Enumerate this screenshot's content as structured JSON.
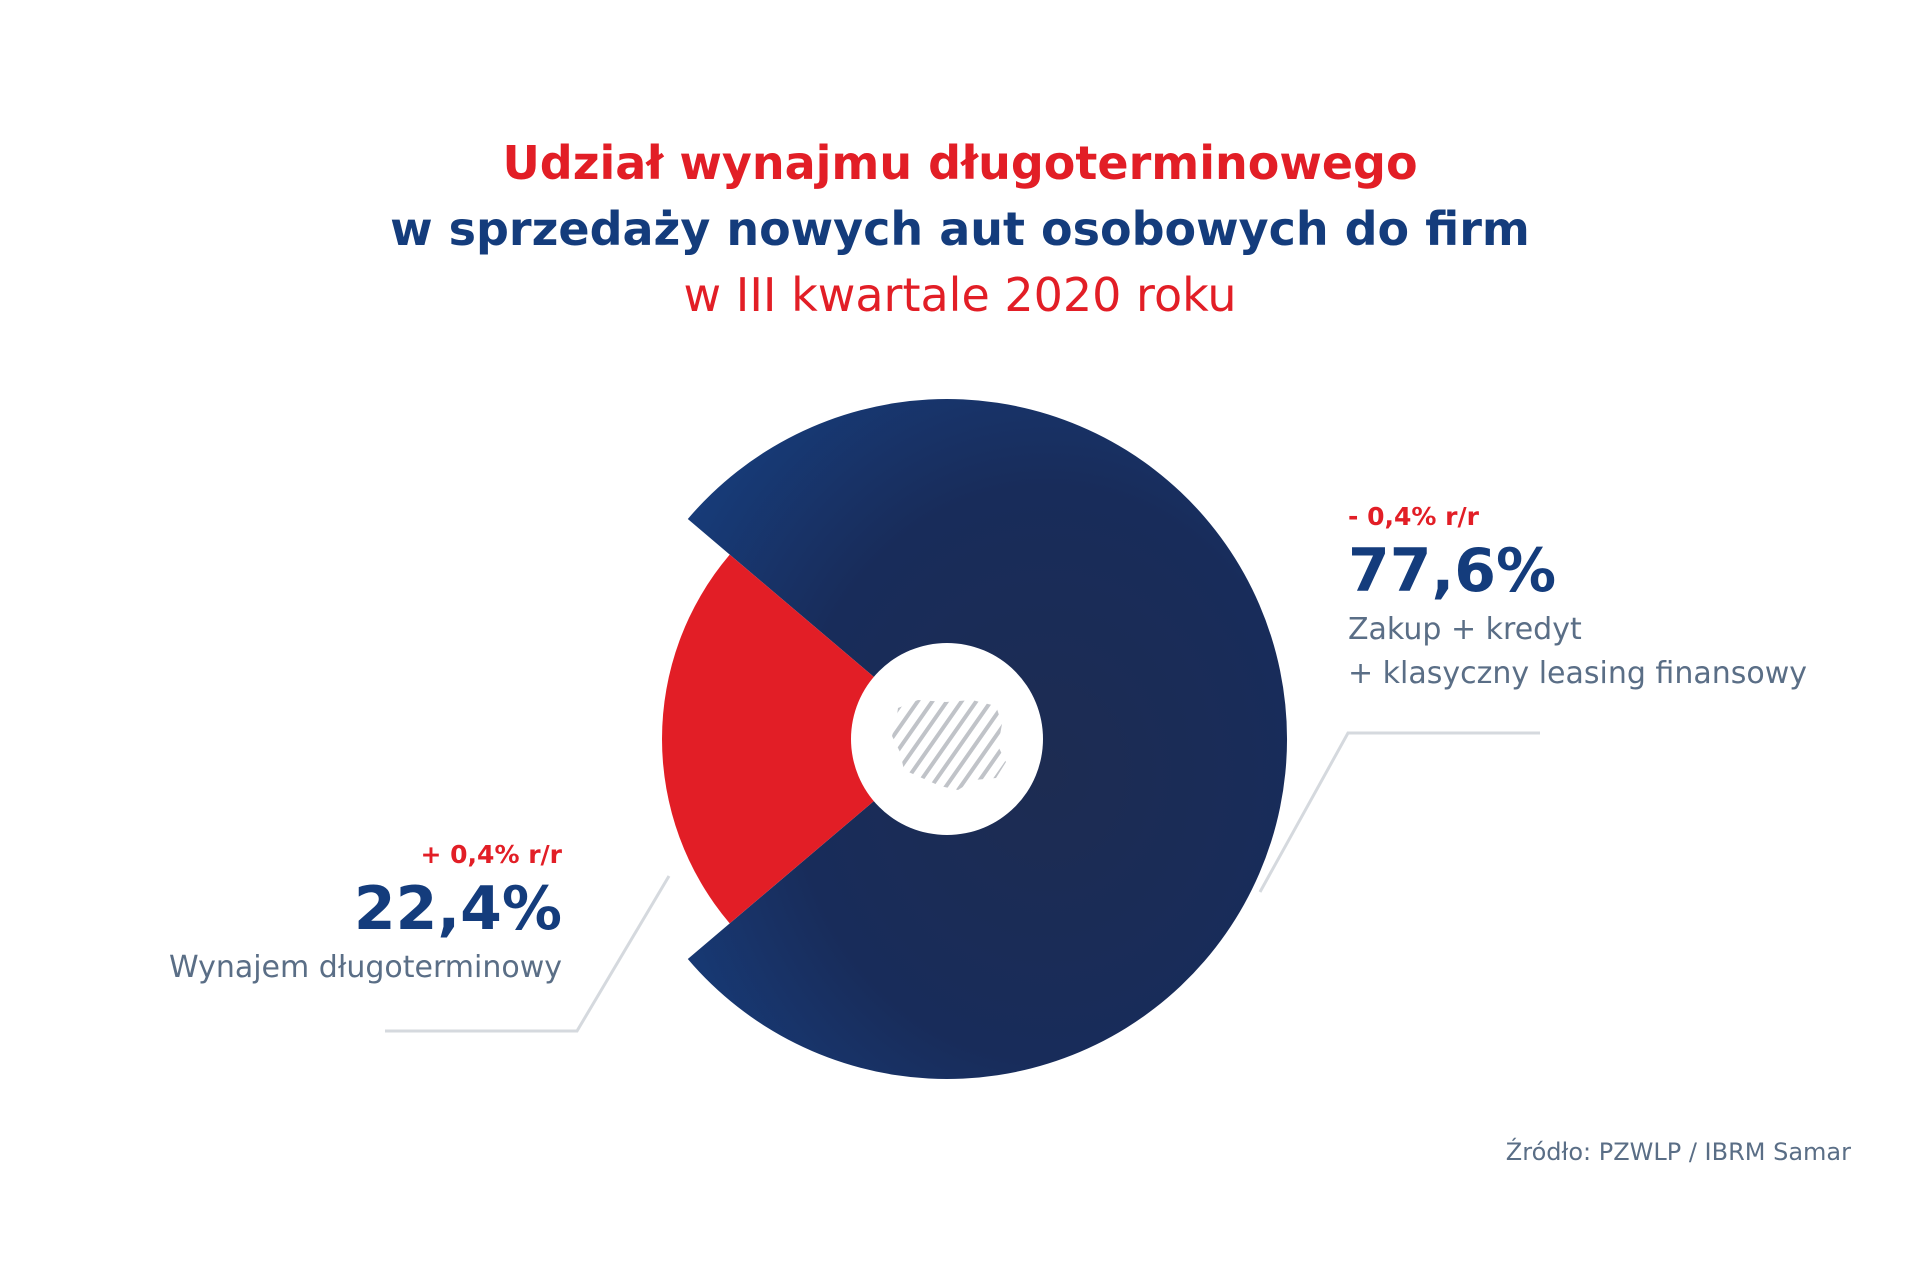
{
  "title": {
    "line1": "Udział wynajmu długoterminowego",
    "line2": "w sprzedaży nowych aut osobowych do firm",
    "line3": "w III kwartale 2020 roku"
  },
  "chart_data": {
    "type": "pie",
    "slices": [
      {
        "value": 77.6,
        "value_label": "77,6%",
        "change": "- 0,4% r/r",
        "desc_line1": "Zakup + kredyt",
        "desc_line2": "+ klasyczny leasing finansowy",
        "color": "#143c7c"
      },
      {
        "value": 22.4,
        "value_label": "22,4%",
        "change": "+ 0,4% r/r",
        "desc_line1": "Wynajem długoterminowy",
        "color": "#e21e26"
      }
    ],
    "legend": "callouts"
  },
  "source": "Źródło: PZWLP / IBRM Samar",
  "colors": {
    "navy": "#143c7c",
    "red": "#e21e26",
    "grey_text": "#5a6e86",
    "connector": "#d5d9de"
  }
}
